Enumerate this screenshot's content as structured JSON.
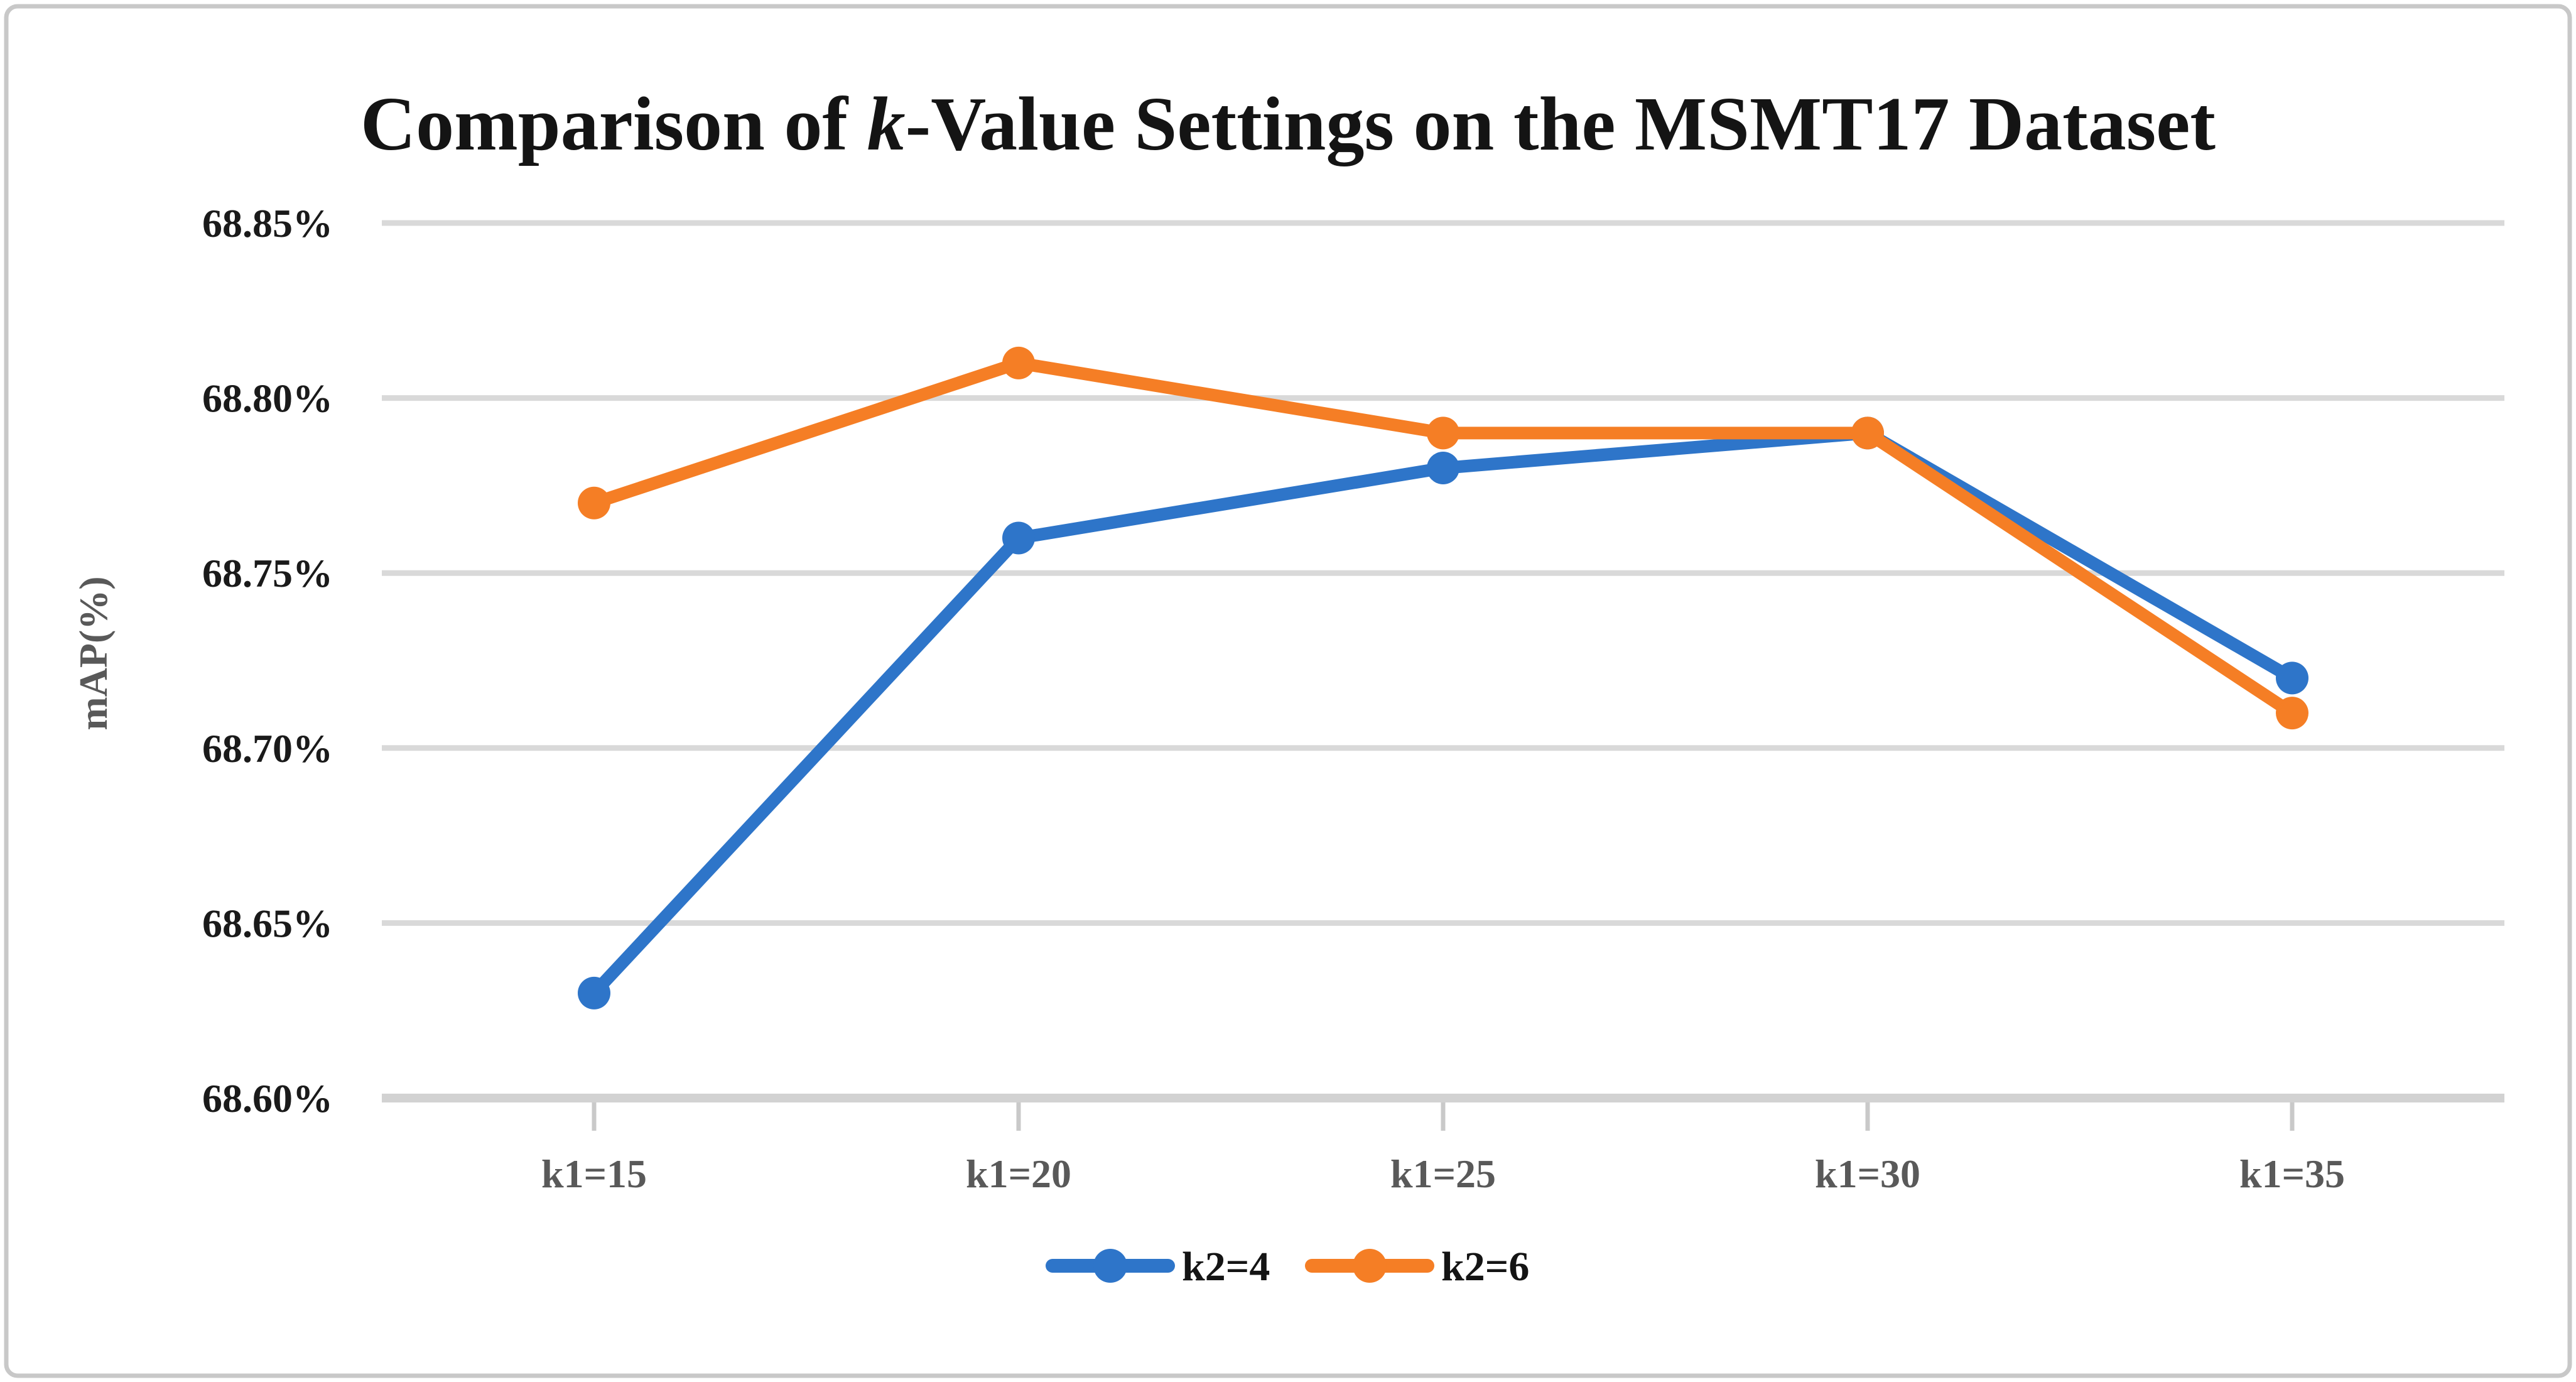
{
  "chart_title": {
    "prefix": "Comparison of ",
    "italic_word": "k",
    "suffix": "-Value Settings on the MSMT17 Dataset"
  },
  "chart_data": {
    "type": "line",
    "title": "Comparison of k-Value Settings on the MSMT17 Dataset",
    "categories": [
      "k1=15",
      "k1=20",
      "k1=25",
      "k1=30",
      "k1=35"
    ],
    "series": [
      {
        "name": "k2=4",
        "color": "#2E75C9",
        "values": [
          68.63,
          68.76,
          68.78,
          68.79,
          68.72
        ]
      },
      {
        "name": "k2=6",
        "color": "#F57E25",
        "values": [
          68.77,
          68.81,
          68.79,
          68.79,
          68.71
        ]
      }
    ],
    "xlabel": "",
    "ylabel": "mAP(%)",
    "y_axis": {
      "min": 68.6,
      "max": 68.85,
      "step": 0.05
    },
    "y_tick_labels": [
      "68.85%",
      "68.80%",
      "68.75%",
      "68.70%",
      "68.65%",
      "68.60%"
    ],
    "grid": true,
    "legend_position": "bottom-center",
    "marker": "circle"
  },
  "colors": {
    "gridline": "#D9D9D9",
    "axis_line": "#D2D2D2",
    "y_tick_text": "#1a1a1a",
    "x_tick_text": "#595959",
    "y_axis_title_text": "#595959",
    "title_text": "#141414",
    "outer_border": "#C8C8C8",
    "background": "#FFFFFF"
  }
}
